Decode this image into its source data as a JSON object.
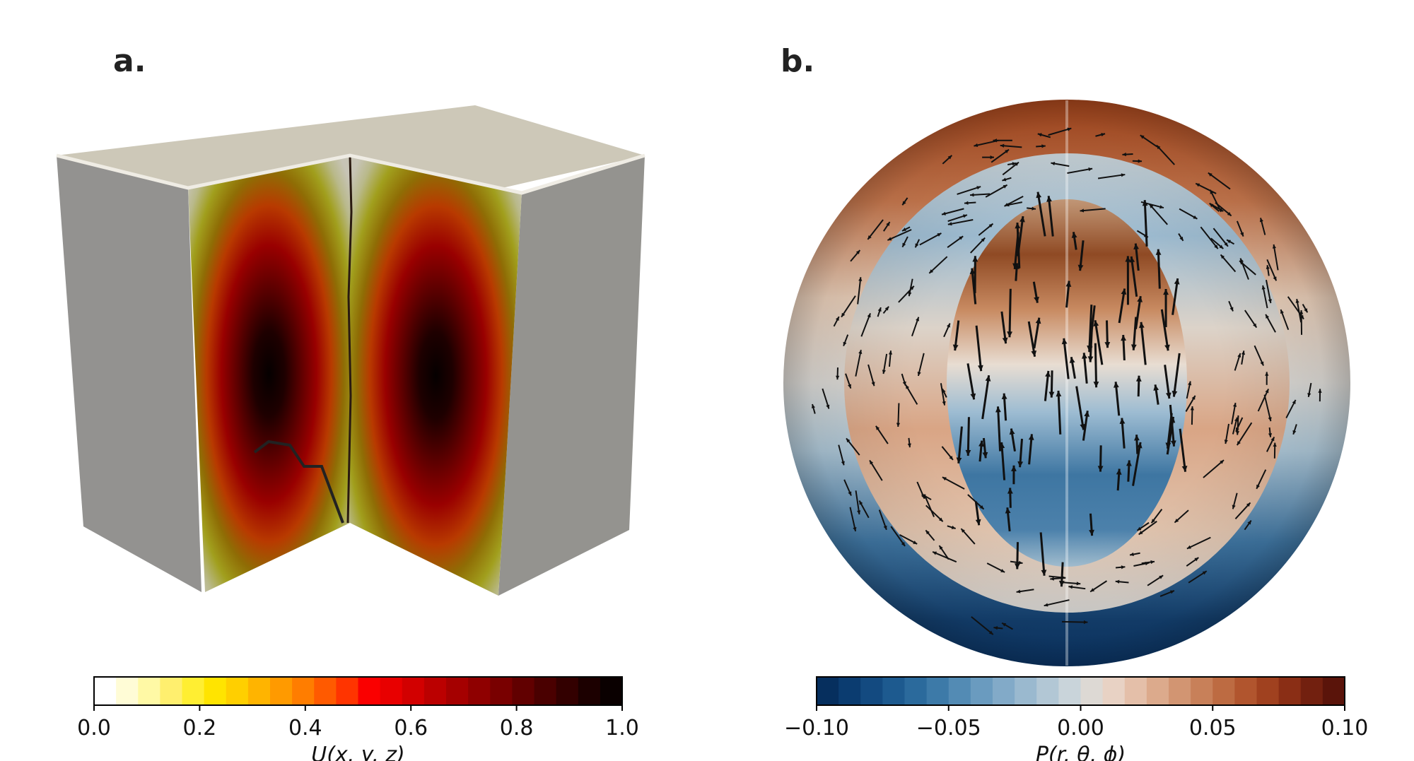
{
  "panels": [
    {
      "label": "a.",
      "colorbar": {
        "label": "U(x, y, z)",
        "ticks": [
          "0.0",
          "0.2",
          "0.4",
          "0.6",
          "0.8",
          "1.0"
        ],
        "range": [
          0.0,
          1.0
        ],
        "colormap": "white-yellow-red-black",
        "colors": [
          "#ffffff",
          "#fffcd6",
          "#fff9a5",
          "#ffef6e",
          "#ffee32",
          "#ffe400",
          "#ffcf00",
          "#ffb400",
          "#ff9a00",
          "#ff7d00",
          "#ff5a00",
          "#ff3400",
          "#fa0000",
          "#e80000",
          "#d20000",
          "#bb0000",
          "#a50000",
          "#8f0000",
          "#790000",
          "#610000",
          "#4a0000",
          "#330000",
          "#1c0000",
          "#0a0000"
        ]
      }
    },
    {
      "label": "b.",
      "colorbar": {
        "label": "P(r, θ, ϕ)",
        "ticks": [
          "−0.10",
          "−0.05",
          "0.00",
          "0.05",
          "0.10"
        ],
        "range": [
          -0.1,
          0.1
        ],
        "colormap": "blue-white-orange-red",
        "colors": [
          "#062f5e",
          "#0b3c70",
          "#134a80",
          "#1d5a8f",
          "#2b6a9c",
          "#3d7aa8",
          "#538bb4",
          "#6a9bbf",
          "#82aac8",
          "#9ab9cf",
          "#b2c7d5",
          "#c9d4da",
          "#ddd9d4",
          "#e8d2c4",
          "#e4bfa9",
          "#dcaa8c",
          "#d29572",
          "#c88059",
          "#bd6b42",
          "#b1552e",
          "#a0411f",
          "#8a2e15",
          "#72200f",
          "#5a140a"
        ]
      }
    }
  ]
}
